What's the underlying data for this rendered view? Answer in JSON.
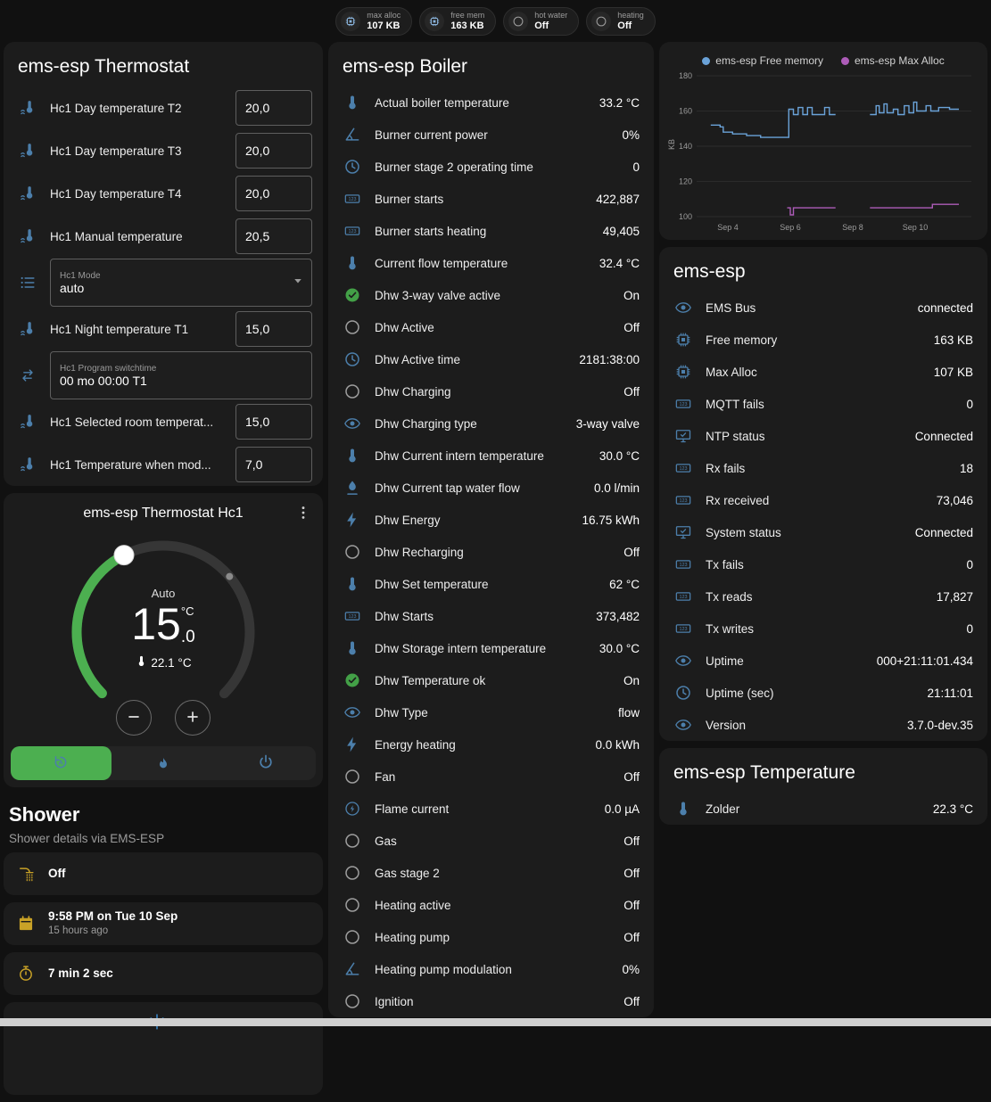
{
  "colors": {
    "icon_default": "#4c7fab",
    "icon_off": "#9e9e9e",
    "icon_on": "#43a047",
    "icon_amber": "#c9a227",
    "icon_snow": "#3b8fd8",
    "accent_green": "#4caf50"
  },
  "topbar": {
    "badges": [
      {
        "label": "max alloc",
        "value": "107 KB",
        "icon": "chip",
        "icon_color": "#8ab4dc"
      },
      {
        "label": "free mem",
        "value": "163 KB",
        "icon": "chip",
        "icon_color": "#8ab4dc"
      },
      {
        "label": "hot water",
        "value": "Off",
        "icon": "circle",
        "icon_color": "#9e9e9e"
      },
      {
        "label": "heating",
        "value": "Off",
        "icon": "circle",
        "icon_color": "#9e9e9e"
      }
    ]
  },
  "thermostat_card": {
    "title": "ems-esp Thermostat",
    "rows": [
      {
        "name": "Hc1 Day temperature T2",
        "value": "20,0",
        "icon": "thermo-water",
        "type": "number"
      },
      {
        "name": "Hc1 Day temperature T3",
        "value": "20,0",
        "icon": "thermo-water",
        "type": "number"
      },
      {
        "name": "Hc1 Day temperature T4",
        "value": "20,0",
        "icon": "thermo-water",
        "type": "number"
      },
      {
        "name": "Hc1 Manual temperature",
        "value": "20,5",
        "icon": "thermo-water",
        "type": "number"
      },
      {
        "name": "Hc1 Mode",
        "value": "auto",
        "icon": "list",
        "type": "select"
      },
      {
        "name": "Hc1 Night temperature T1",
        "value": "15,0",
        "icon": "thermo-water",
        "type": "number"
      },
      {
        "name": "Hc1 Program switchtime",
        "value": "00 mo 00:00 T1",
        "icon": "swap",
        "type": "text"
      },
      {
        "name": "Hc1 Selected room temperat...",
        "value": "15,0",
        "icon": "thermo-water",
        "type": "number"
      },
      {
        "name": "Hc1 Temperature when mod...",
        "value": "7,0",
        "icon": "thermo-water",
        "type": "number"
      }
    ]
  },
  "hc1_card": {
    "title": "ems-esp Thermostat Hc1",
    "mode_label": "Auto",
    "target_main": "15",
    "target_decimal": ".0",
    "target_unit": "°C",
    "current_temp": "22.1 °C",
    "modes": [
      {
        "icon": "auto",
        "active": true
      },
      {
        "icon": "flame",
        "active": false
      },
      {
        "icon": "power",
        "active": false
      }
    ]
  },
  "shower_section": {
    "title": "Shower",
    "subtitle": "Shower details via EMS-ESP",
    "cards": [
      {
        "icon": "shower",
        "icon_color": "#c9a227",
        "primary": "Off",
        "secondary": ""
      },
      {
        "icon": "calendar",
        "icon_color": "#c9a227",
        "primary": "9:58 PM on Tue 10 Sep",
        "secondary": "15 hours ago"
      },
      {
        "icon": "timer",
        "icon_color": "#c9a227",
        "primary": "7 min 2 sec",
        "secondary": ""
      },
      {
        "icon": "snowflake",
        "icon_color": "#3b8fd8",
        "primary": "",
        "secondary": "",
        "partial": true
      }
    ]
  },
  "boiler_card": {
    "title": "ems-esp Boiler",
    "rows": [
      {
        "name": "Actual boiler temperature",
        "value": "33.2 °C",
        "icon": "thermometer"
      },
      {
        "name": "Burner current power",
        "value": "0%",
        "icon": "angle"
      },
      {
        "name": "Burner stage 2 operating time",
        "value": "0",
        "icon": "clock"
      },
      {
        "name": "Burner starts",
        "value": "422,887",
        "icon": "counter"
      },
      {
        "name": "Burner starts heating",
        "value": "49,405",
        "icon": "counter"
      },
      {
        "name": "Current flow temperature",
        "value": "32.4 °C",
        "icon": "thermometer"
      },
      {
        "name": "Dhw 3-way valve active",
        "value": "On",
        "icon": "check-circle",
        "icon_color": "#43a047"
      },
      {
        "name": "Dhw Active",
        "value": "Off",
        "icon": "circle",
        "icon_color": "#9e9e9e"
      },
      {
        "name": "Dhw Active time",
        "value": "2181:38:00",
        "icon": "clock"
      },
      {
        "name": "Dhw Charging",
        "value": "Off",
        "icon": "circle",
        "icon_color": "#9e9e9e"
      },
      {
        "name": "Dhw Charging type",
        "value": "3-way valve",
        "icon": "eye"
      },
      {
        "name": "Dhw Current intern temperature",
        "value": "30.0 °C",
        "icon": "thermometer"
      },
      {
        "name": "Dhw Current tap water flow",
        "value": "0.0 l/min",
        "icon": "pump"
      },
      {
        "name": "Dhw Energy",
        "value": "16.75 kWh",
        "icon": "lightning"
      },
      {
        "name": "Dhw Recharging",
        "value": "Off",
        "icon": "circle",
        "icon_color": "#9e9e9e"
      },
      {
        "name": "Dhw Set temperature",
        "value": "62 °C",
        "icon": "thermometer"
      },
      {
        "name": "Dhw Starts",
        "value": "373,482",
        "icon": "counter"
      },
      {
        "name": "Dhw Storage intern temperature",
        "value": "30.0 °C",
        "icon": "thermometer"
      },
      {
        "name": "Dhw Temperature ok",
        "value": "On",
        "icon": "check-circle",
        "icon_color": "#43a047"
      },
      {
        "name": "Dhw Type",
        "value": "flow",
        "icon": "eye"
      },
      {
        "name": "Energy heating",
        "value": "0.0 kWh",
        "icon": "lightning"
      },
      {
        "name": "Fan",
        "value": "Off",
        "icon": "circle",
        "icon_color": "#9e9e9e"
      },
      {
        "name": "Flame current",
        "value": "0.0 µA",
        "icon": "flash-circle"
      },
      {
        "name": "Gas",
        "value": "Off",
        "icon": "circle",
        "icon_color": "#9e9e9e"
      },
      {
        "name": "Gas stage 2",
        "value": "Off",
        "icon": "circle",
        "icon_color": "#9e9e9e"
      },
      {
        "name": "Heating active",
        "value": "Off",
        "icon": "circle",
        "icon_color": "#9e9e9e"
      },
      {
        "name": "Heating pump",
        "value": "Off",
        "icon": "circle",
        "icon_color": "#9e9e9e"
      },
      {
        "name": "Heating pump modulation",
        "value": "0%",
        "icon": "angle"
      },
      {
        "name": "Ignition",
        "value": "Off",
        "icon": "circle",
        "icon_color": "#9e9e9e"
      }
    ]
  },
  "emsesp_card": {
    "title": "ems-esp",
    "rows": [
      {
        "name": "EMS Bus",
        "value": "connected",
        "icon": "eye"
      },
      {
        "name": "Free memory",
        "value": "163 KB",
        "icon": "chip"
      },
      {
        "name": "Max Alloc",
        "value": "107 KB",
        "icon": "chip"
      },
      {
        "name": "MQTT fails",
        "value": "0",
        "icon": "counter"
      },
      {
        "name": "NTP status",
        "value": "Connected",
        "icon": "network"
      },
      {
        "name": "Rx fails",
        "value": "18",
        "icon": "counter"
      },
      {
        "name": "Rx received",
        "value": "73,046",
        "icon": "counter"
      },
      {
        "name": "System status",
        "value": "Connected",
        "icon": "network"
      },
      {
        "name": "Tx fails",
        "value": "0",
        "icon": "counter"
      },
      {
        "name": "Tx reads",
        "value": "17,827",
        "icon": "counter"
      },
      {
        "name": "Tx writes",
        "value": "0",
        "icon": "counter"
      },
      {
        "name": "Uptime",
        "value": "000+21:11:01.434",
        "icon": "eye"
      },
      {
        "name": "Uptime (sec)",
        "value": "21:11:01",
        "icon": "clock"
      },
      {
        "name": "Version",
        "value": "3.7.0-dev.35",
        "icon": "eye"
      }
    ]
  },
  "temperature_card": {
    "title": "ems-esp Temperature",
    "rows": [
      {
        "name": "Zolder",
        "value": "22.3 °C",
        "icon": "thermometer"
      }
    ]
  },
  "chart_data": {
    "type": "line",
    "title": "",
    "ylabel": "KB",
    "ylim": [
      100,
      180
    ],
    "yticks": [
      100,
      120,
      140,
      160,
      180
    ],
    "x_domain_days": [
      3.0,
      11.8
    ],
    "xticks": [
      {
        "day": 4,
        "label": "Sep 4"
      },
      {
        "day": 6,
        "label": "Sep 6"
      },
      {
        "day": 8,
        "label": "Sep 8"
      },
      {
        "day": 10,
        "label": "Sep 10"
      }
    ],
    "grid": true,
    "legend_position": "top",
    "series": [
      {
        "name": "ems-esp Free memory",
        "color": "#6aa2d8",
        "segments": [
          [
            [
              3.45,
              152
            ],
            [
              3.75,
              152
            ],
            [
              3.75,
              151
            ],
            [
              3.85,
              151
            ],
            [
              3.85,
              148
            ],
            [
              4.15,
              148
            ],
            [
              4.15,
              147
            ],
            [
              4.6,
              147
            ],
            [
              4.6,
              146
            ],
            [
              5.05,
              146
            ],
            [
              5.05,
              145
            ],
            [
              5.95,
              145
            ],
            [
              5.95,
              161
            ],
            [
              6.1,
              161
            ],
            [
              6.1,
              158
            ],
            [
              6.25,
              158
            ],
            [
              6.25,
              162
            ],
            [
              6.4,
              162
            ],
            [
              6.4,
              158
            ],
            [
              6.55,
              158
            ],
            [
              6.55,
              162
            ],
            [
              6.7,
              162
            ],
            [
              6.7,
              158
            ],
            [
              7.1,
              158
            ],
            [
              7.1,
              162
            ],
            [
              7.25,
              162
            ],
            [
              7.25,
              158
            ],
            [
              7.45,
              158
            ]
          ],
          [
            [
              8.55,
              158
            ],
            [
              8.75,
              158
            ],
            [
              8.75,
              163
            ],
            [
              8.85,
              163
            ],
            [
              8.85,
              159
            ],
            [
              9.0,
              159
            ],
            [
              9.0,
              164
            ],
            [
              9.1,
              164
            ],
            [
              9.1,
              159
            ],
            [
              9.3,
              159
            ],
            [
              9.3,
              161
            ],
            [
              9.45,
              161
            ],
            [
              9.45,
              158
            ],
            [
              9.65,
              158
            ],
            [
              9.65,
              163
            ],
            [
              9.8,
              163
            ],
            [
              9.8,
              159
            ],
            [
              9.95,
              159
            ],
            [
              9.95,
              165
            ],
            [
              10.05,
              165
            ],
            [
              10.05,
              160
            ],
            [
              10.35,
              160
            ],
            [
              10.35,
              163
            ],
            [
              10.5,
              163
            ],
            [
              10.5,
              160
            ],
            [
              10.75,
              160
            ],
            [
              10.75,
              162
            ],
            [
              11.1,
              162
            ],
            [
              11.1,
              161
            ],
            [
              11.4,
              161
            ]
          ]
        ]
      },
      {
        "name": "ems-esp Max Alloc",
        "color": "#ad5cb8",
        "segments": [
          [
            [
              5.9,
              105
            ],
            [
              6.0,
              105
            ],
            [
              6.0,
              101
            ],
            [
              6.1,
              101
            ],
            [
              6.1,
              105
            ],
            [
              7.45,
              105
            ]
          ],
          [
            [
              8.55,
              105
            ],
            [
              10.55,
              105
            ],
            [
              10.55,
              107
            ],
            [
              11.4,
              107
            ]
          ]
        ]
      }
    ]
  }
}
